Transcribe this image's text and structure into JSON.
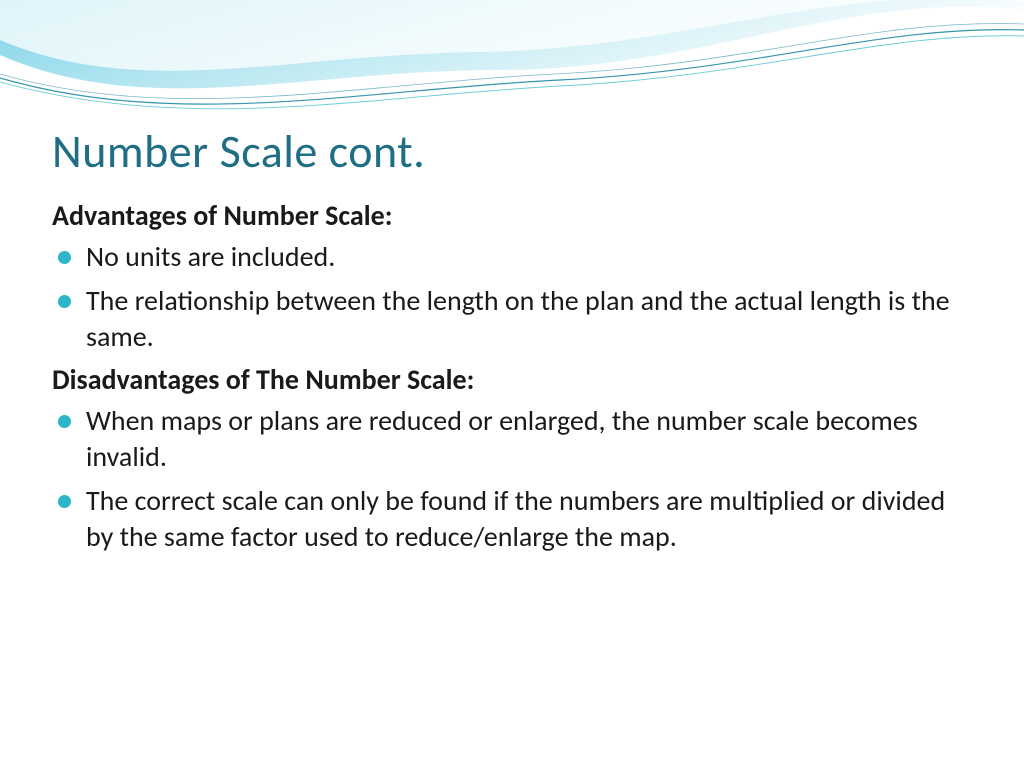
{
  "theme": {
    "title_color": "#1f6e85",
    "bullet_color": "#2cb6c8",
    "text_color": "#1a1a1a",
    "wave_gradient_start": "#7fd3e8",
    "wave_gradient_end": "#ffffff",
    "wave_line_color": "#1f8aa3",
    "title_fontsize": 46,
    "body_fontsize": 28,
    "heading_fontsize": 28
  },
  "slide": {
    "title": "Number Scale cont.",
    "sections": [
      {
        "heading": "Advantages of Number Scale:",
        "bullets": [
          "No units are included.",
          "The relationship between the length on the plan and the actual length is the same."
        ]
      },
      {
        "heading": "Disadvantages of The Number Scale:",
        "bullets": [
          "When maps or plans are reduced or enlarged, the number scale becomes invalid.",
          "The correct scale can only be found if the numbers are multiplied or divided by the same factor used to reduce/enlarge the map."
        ]
      }
    ]
  }
}
